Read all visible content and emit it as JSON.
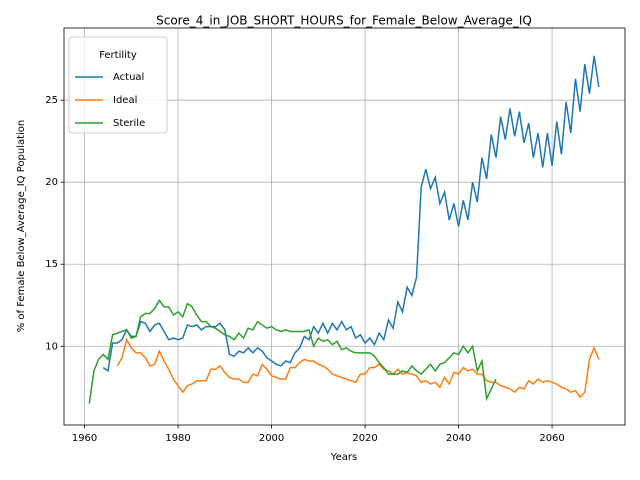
{
  "chart_data": {
    "type": "line",
    "title": "Score_4_in_JOB_SHORT_HOURS_for_Female_Below_Average_IQ",
    "x_label": "Years",
    "y_label": "% of Female Below_Average_IQ Population",
    "legend_title": "Fertility",
    "legend": "upper left",
    "grid": true,
    "x": [
      1961,
      1962,
      1963,
      1964,
      1965,
      1966,
      1967,
      1968,
      1969,
      1970,
      1971,
      1972,
      1973,
      1974,
      1975,
      1976,
      1977,
      1978,
      1979,
      1980,
      1981,
      1982,
      1983,
      1984,
      1985,
      1986,
      1987,
      1988,
      1989,
      1990,
      1991,
      1992,
      1993,
      1994,
      1995,
      1996,
      1997,
      1998,
      1999,
      2000,
      2001,
      2002,
      2003,
      2004,
      2005,
      2006,
      2007,
      2008,
      2009,
      2010,
      2011,
      2012,
      2013,
      2014,
      2015,
      2016,
      2017,
      2018,
      2019,
      2020,
      2021,
      2022,
      2023,
      2024,
      2025,
      2026,
      2027,
      2028,
      2029,
      2030,
      2031,
      2032,
      2033,
      2034,
      2035,
      2036,
      2037,
      2038,
      2039,
      2040,
      2041,
      2042,
      2043,
      2044,
      2045,
      2046,
      2047,
      2048,
      2049,
      2050,
      2051,
      2052,
      2053,
      2054,
      2055,
      2056,
      2057,
      2058,
      2059,
      2060,
      2061,
      2062,
      2063,
      2064,
      2065,
      2066,
      2067,
      2068,
      2069,
      2070
    ],
    "series": [
      {
        "name": "Actual",
        "color": "#1f77b4",
        "values": [
          null,
          null,
          null,
          8.7,
          8.5,
          10.2,
          10.2,
          10.4,
          11.0,
          10.6,
          10.6,
          11.5,
          11.4,
          10.9,
          11.3,
          11.4,
          10.9,
          10.4,
          10.5,
          10.4,
          10.5,
          11.3,
          11.2,
          11.3,
          11.0,
          11.2,
          11.2,
          11.2,
          11.4,
          11.0,
          9.5,
          9.4,
          9.7,
          9.6,
          9.9,
          9.6,
          9.9,
          9.7,
          9.3,
          9.1,
          8.9,
          8.8,
          9.1,
          9.0,
          9.6,
          9.9,
          10.6,
          10.4,
          11.2,
          10.8,
          11.4,
          10.8,
          11.4,
          11.0,
          11.5,
          11.0,
          11.2,
          10.5,
          10.7,
          10.2,
          10.5,
          10.1,
          10.8,
          10.4,
          11.6,
          11.1,
          12.7,
          12.1,
          13.6,
          13.1,
          14.2,
          19.7,
          20.8,
          19.6,
          20.3,
          18.7,
          19.4,
          17.7,
          18.7,
          17.3,
          18.9,
          17.7,
          20.0,
          18.8,
          21.5,
          20.2,
          22.9,
          21.5,
          24.0,
          22.6,
          24.5,
          22.8,
          24.3,
          22.4,
          23.6,
          21.5,
          23.0,
          20.9,
          23.0,
          21.0,
          23.7,
          21.7,
          24.9,
          23.0,
          26.3,
          24.3,
          27.2,
          25.4,
          27.7,
          25.8
        ]
      },
      {
        "name": "Ideal",
        "color": "#ff7f0e",
        "values": [
          null,
          null,
          null,
          null,
          null,
          null,
          8.8,
          9.3,
          10.4,
          9.9,
          9.6,
          9.6,
          9.3,
          8.8,
          8.9,
          9.7,
          9.1,
          8.6,
          8.0,
          7.6,
          7.2,
          7.6,
          7.7,
          7.9,
          7.9,
          7.9,
          8.6,
          8.6,
          8.8,
          8.4,
          8.1,
          8.0,
          8.0,
          7.8,
          7.8,
          8.3,
          8.2,
          8.9,
          8.6,
          8.2,
          8.1,
          8.0,
          8.0,
          8.7,
          8.7,
          9.0,
          9.2,
          9.1,
          9.1,
          8.9,
          8.8,
          8.6,
          8.3,
          8.2,
          8.1,
          8.0,
          7.9,
          7.8,
          8.3,
          8.3,
          8.7,
          8.7,
          8.9,
          8.6,
          8.5,
          8.3,
          8.6,
          8.3,
          8.4,
          8.3,
          8.2,
          7.8,
          7.9,
          7.7,
          7.8,
          7.5,
          8.1,
          7.7,
          8.4,
          8.3,
          8.7,
          8.5,
          8.6,
          8.3,
          8.3,
          7.9,
          7.8,
          7.8,
          7.6,
          7.5,
          7.4,
          7.2,
          7.5,
          7.4,
          7.9,
          7.7,
          8.0,
          7.8,
          7.9,
          7.8,
          7.7,
          7.5,
          7.4,
          7.2,
          7.3,
          6.9,
          7.2,
          9.2,
          9.9,
          9.2
        ]
      },
      {
        "name": "Sterile",
        "color": "#2ca02c",
        "values": [
          6.5,
          8.5,
          9.2,
          9.5,
          9.2,
          10.7,
          10.8,
          10.9,
          11.0,
          10.5,
          10.6,
          11.8,
          12.0,
          12.0,
          12.3,
          12.8,
          12.4,
          12.4,
          11.9,
          12.1,
          11.8,
          12.6,
          12.4,
          11.9,
          11.5,
          11.5,
          11.2,
          11.1,
          10.9,
          10.7,
          10.6,
          10.4,
          10.8,
          10.5,
          11.1,
          11.0,
          11.5,
          11.3,
          11.1,
          11.2,
          11.0,
          10.9,
          11.0,
          10.9,
          10.9,
          10.9,
          10.9,
          11.0,
          10.0,
          10.5,
          10.3,
          10.4,
          10.1,
          10.3,
          9.8,
          9.9,
          9.7,
          9.6,
          9.6,
          9.6,
          9.6,
          9.4,
          9.0,
          8.7,
          8.3,
          8.3,
          8.3,
          8.5,
          8.4,
          8.8,
          8.5,
          8.3,
          8.6,
          8.9,
          8.5,
          8.9,
          9.0,
          9.3,
          9.6,
          9.5,
          10.0,
          9.6,
          10.0,
          8.5,
          9.1,
          6.8,
          7.4,
          8.0,
          null,
          null,
          null,
          null,
          null,
          null,
          null,
          null,
          null,
          null,
          null,
          null,
          null,
          null,
          null,
          null,
          null,
          null,
          null,
          null,
          null,
          null
        ]
      }
    ],
    "xlim": [
      1955.6,
      2075.6
    ],
    "xticks": [
      1960,
      1980,
      2000,
      2020,
      2040,
      2060
    ],
    "ylim": [
      5.2,
      29.4
    ],
    "yticks": [
      10,
      15,
      20,
      25
    ]
  }
}
